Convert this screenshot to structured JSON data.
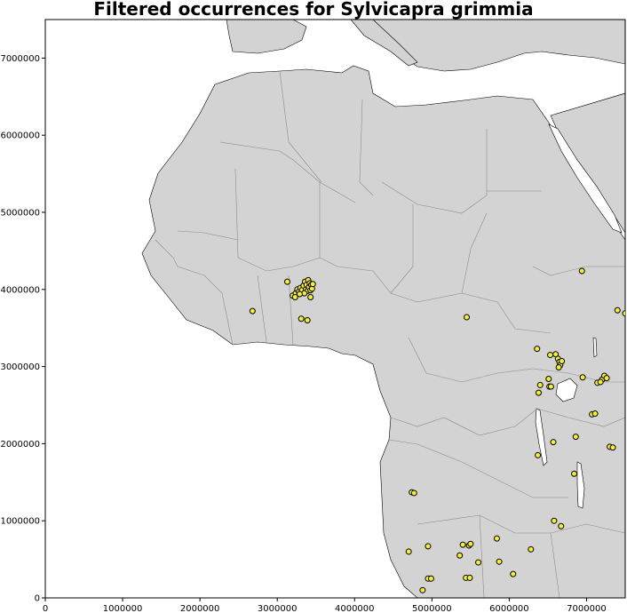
{
  "map": {
    "title": "Filtered occurrences for Sylvicapra grimmia",
    "projection_units": "meters",
    "xlim": [
      0,
      7500000
    ],
    "ylim": [
      0,
      7500000
    ],
    "x_ticks": [
      "0",
      "1000000",
      "2000000",
      "3000000",
      "4000000",
      "5000000",
      "6000000",
      "7000000"
    ],
    "y_ticks": [
      "0",
      "1000000",
      "2000000",
      "3000000",
      "4000000",
      "5000000",
      "6000000",
      "7000000"
    ],
    "colors": {
      "land": "#d3d3d3",
      "water": "#ffffff",
      "borders": "#8c8c8c",
      "coastline": "#000000",
      "point_fill": "#f5ee2a",
      "point_edge": "#000000"
    }
  },
  "chart_data": {
    "type": "scatter",
    "title": "Filtered occurrences for Sylvicapra grimmia",
    "xlim": [
      0,
      7500000
    ],
    "ylim": [
      0,
      7500000
    ],
    "grid": false,
    "points": [
      [
        2680000,
        3720000
      ],
      [
        3130000,
        4100000
      ],
      [
        3200000,
        3920000
      ],
      [
        3240000,
        3950000
      ],
      [
        3260000,
        4000000
      ],
      [
        3280000,
        3970000
      ],
      [
        3300000,
        4020000
      ],
      [
        3320000,
        3990000
      ],
      [
        3340000,
        4050000
      ],
      [
        3360000,
        4100000
      ],
      [
        3370000,
        4000000
      ],
      [
        3380000,
        4060000
      ],
      [
        3390000,
        3980000
      ],
      [
        3400000,
        4120000
      ],
      [
        3410000,
        4030000
      ],
      [
        3420000,
        4080000
      ],
      [
        3430000,
        3990000
      ],
      [
        3440000,
        4060000
      ],
      [
        3450000,
        4010000
      ],
      [
        3460000,
        4070000
      ],
      [
        3350000,
        3950000
      ],
      [
        3290000,
        3940000
      ],
      [
        3230000,
        3900000
      ],
      [
        3430000,
        3900000
      ],
      [
        3310000,
        3620000
      ],
      [
        3390000,
        3600000
      ],
      [
        5450000,
        3640000
      ],
      [
        6360000,
        3230000
      ],
      [
        6530000,
        3150000
      ],
      [
        6600000,
        3160000
      ],
      [
        6630000,
        3100000
      ],
      [
        6650000,
        3060000
      ],
      [
        6660000,
        3020000
      ],
      [
        6680000,
        3070000
      ],
      [
        6640000,
        2990000
      ],
      [
        6510000,
        2840000
      ],
      [
        6400000,
        2760000
      ],
      [
        6520000,
        2740000
      ],
      [
        6540000,
        2740000
      ],
      [
        6380000,
        2660000
      ],
      [
        6950000,
        2860000
      ],
      [
        7200000,
        2830000
      ],
      [
        7230000,
        2880000
      ],
      [
        7260000,
        2850000
      ],
      [
        7140000,
        2790000
      ],
      [
        7180000,
        2800000
      ],
      [
        6940000,
        4240000
      ],
      [
        7400000,
        3730000
      ],
      [
        7500000,
        3690000
      ],
      [
        7070000,
        2380000
      ],
      [
        7110000,
        2390000
      ],
      [
        6570000,
        2020000
      ],
      [
        6860000,
        2090000
      ],
      [
        7300000,
        1960000
      ],
      [
        7340000,
        1950000
      ],
      [
        6370000,
        1850000
      ],
      [
        6840000,
        1610000
      ],
      [
        4740000,
        1370000
      ],
      [
        4770000,
        1360000
      ],
      [
        6580000,
        1000000
      ],
      [
        6670000,
        930000
      ],
      [
        5840000,
        770000
      ],
      [
        5400000,
        690000
      ],
      [
        5480000,
        680000
      ],
      [
        5500000,
        700000
      ],
      [
        4950000,
        670000
      ],
      [
        4700000,
        600000
      ],
      [
        5360000,
        550000
      ],
      [
        6280000,
        630000
      ],
      [
        5870000,
        470000
      ],
      [
        5600000,
        460000
      ],
      [
        6050000,
        310000
      ],
      [
        5440000,
        260000
      ],
      [
        5490000,
        260000
      ],
      [
        4950000,
        250000
      ],
      [
        4990000,
        250000
      ],
      [
        4880000,
        100000
      ]
    ]
  }
}
